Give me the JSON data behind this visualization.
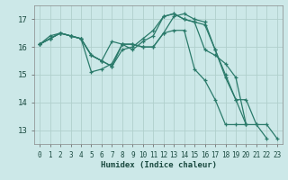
{
  "xlabel": "Humidex (Indice chaleur)",
  "bg_color": "#cce8e8",
  "grid_color": "#b0d0cc",
  "line_color": "#2a7a6a",
  "xlim": [
    -0.5,
    23.5
  ],
  "ylim": [
    12.5,
    17.5
  ],
  "yticks": [
    13,
    14,
    15,
    16,
    17
  ],
  "xticks": [
    0,
    1,
    2,
    3,
    4,
    5,
    6,
    7,
    8,
    9,
    10,
    11,
    12,
    13,
    14,
    15,
    16,
    17,
    18,
    19,
    20,
    21,
    22,
    23
  ],
  "series": [
    {
      "x": [
        0,
        1,
        2,
        3,
        4,
        5,
        6,
        7,
        8,
        9,
        10,
        11,
        12,
        13,
        14,
        15,
        16,
        17,
        18,
        19,
        20
      ],
      "y": [
        16.1,
        16.3,
        16.5,
        16.4,
        16.3,
        15.1,
        15.2,
        15.4,
        16.1,
        16.1,
        16.0,
        16.0,
        16.5,
        16.6,
        16.6,
        15.2,
        14.8,
        14.1,
        13.2,
        13.2,
        13.2
      ]
    },
    {
      "x": [
        0,
        1,
        2,
        3,
        4,
        5,
        6,
        7,
        8,
        9,
        10,
        11,
        12,
        13,
        14,
        15,
        16,
        17,
        18,
        19,
        20
      ],
      "y": [
        16.1,
        16.3,
        16.5,
        16.4,
        16.3,
        15.7,
        15.5,
        16.2,
        16.1,
        15.9,
        16.2,
        16.4,
        17.1,
        17.2,
        17.0,
        16.9,
        15.9,
        15.7,
        15.4,
        14.9,
        13.2
      ]
    },
    {
      "x": [
        0,
        1,
        2,
        3,
        4,
        5,
        6,
        7,
        8,
        9,
        10,
        11,
        12,
        13,
        14,
        15,
        16,
        17,
        18,
        19,
        20,
        21,
        22
      ],
      "y": [
        16.1,
        16.3,
        16.5,
        16.4,
        16.3,
        15.7,
        15.5,
        15.3,
        15.9,
        16.0,
        16.3,
        16.6,
        17.1,
        17.2,
        17.0,
        16.9,
        16.8,
        15.9,
        15.0,
        14.1,
        13.2,
        13.2,
        12.7
      ]
    },
    {
      "x": [
        0,
        1,
        2,
        3,
        4,
        5,
        6,
        7,
        8,
        9,
        10,
        11,
        12,
        13,
        14,
        15,
        16,
        17,
        18,
        19,
        20,
        21,
        22,
        23
      ],
      "y": [
        16.1,
        16.4,
        16.5,
        16.4,
        16.3,
        15.7,
        15.5,
        15.3,
        16.1,
        16.1,
        16.0,
        16.0,
        16.5,
        17.1,
        17.2,
        17.0,
        16.9,
        15.9,
        14.9,
        14.1,
        14.1,
        13.2,
        13.2,
        12.7
      ]
    }
  ]
}
